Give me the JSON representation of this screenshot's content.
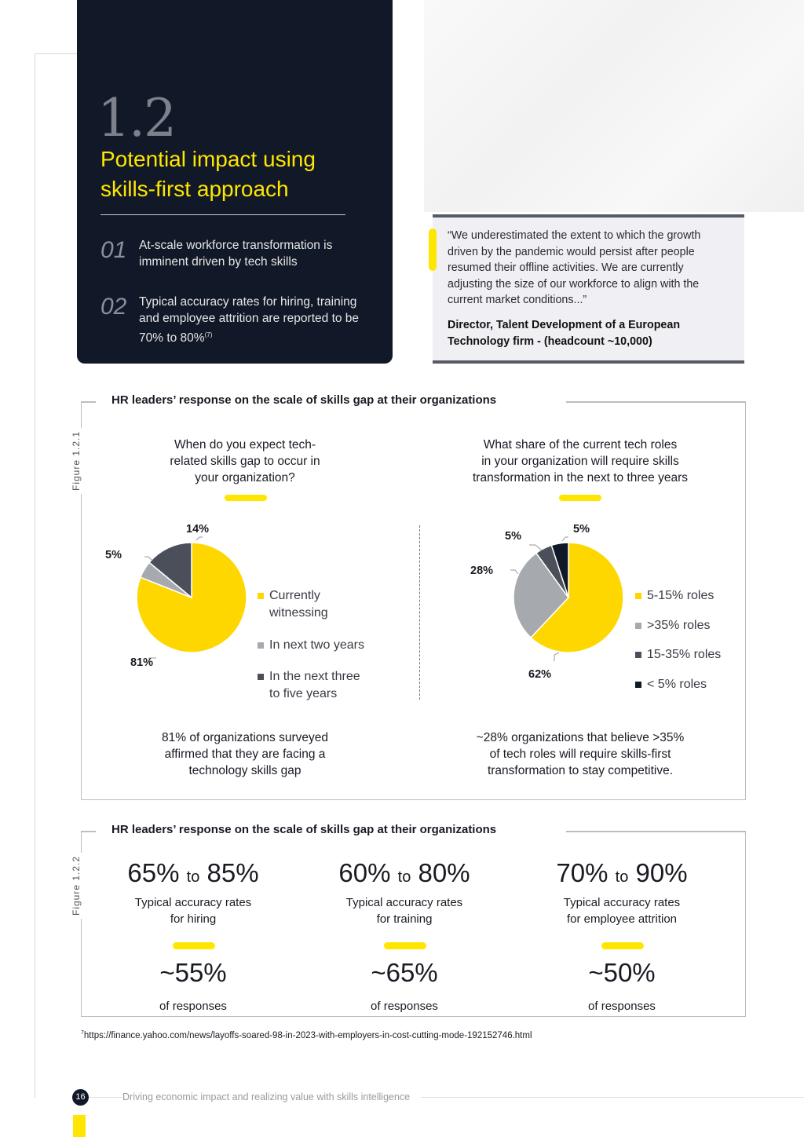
{
  "hero": {
    "section_number": "1.2",
    "title_line1": "Potential impact using",
    "title_line2": "skills-first approach",
    "points": [
      {
        "num": "01",
        "text": "At-scale workforce transformation is imminent driven by tech skills"
      },
      {
        "num": "02",
        "text": "Typical accuracy rates for hiring, training and employee attrition are reported to be 70% to 80%",
        "sup": "(7)"
      }
    ]
  },
  "quote": {
    "text": "“We underestimated the extent to which the growth driven by the pandemic would persist after people resumed their offline activities. We are currently adjusting the size of our workforce to align with the current market conditions...”",
    "attribution": "Director, Talent Development of a European Technology firm - (headcount ~10,000)"
  },
  "figure1": {
    "label": "Figure 1.2.1",
    "title": "HR leaders’ response on the scale of skills gap at their organizations",
    "left": {
      "question": [
        "When do you expect tech-",
        "related skills gap to occur in",
        "your organization?"
      ],
      "caption": [
        "81% of organizations surveyed",
        "affirmed that they are facing a",
        "technology skills gap"
      ],
      "legend": [
        {
          "label1": "Currently",
          "label2": "witnessing",
          "color": "#ffd700"
        },
        {
          "label1": "In next two years",
          "label2": "",
          "color": "#a6a9ad"
        },
        {
          "label1": "In the next three",
          "label2": "to five years",
          "color": "#4a4f59"
        }
      ],
      "labels": [
        "81%",
        "5%",
        "14%"
      ]
    },
    "right": {
      "question": [
        "What share of the current tech roles",
        "in your organization will require skills",
        "transformation in the next to three years"
      ],
      "caption": [
        "~28% organizations that believe >35%",
        "of tech roles will require skills-first",
        "transformation to stay competitive."
      ],
      "legend": [
        {
          "label": "5-15% roles",
          "color": "#ffd700"
        },
        {
          "label": ">35% roles",
          "color": "#a6a9ad"
        },
        {
          "label": "15-35% roles",
          "color": "#4a4f59"
        },
        {
          "label": "< 5% roles",
          "color": "#111827"
        }
      ],
      "labels": [
        "62%",
        "28%",
        "5%",
        "5%"
      ]
    }
  },
  "chart_data": [
    {
      "type": "pie",
      "title": "When do you expect tech-related skills gap to occur in your organization?",
      "categories": [
        "Currently witnessing",
        "In next two years",
        "In the next three to five years"
      ],
      "values": [
        81,
        5,
        14
      ]
    },
    {
      "type": "pie",
      "title": "What share of the current tech roles in your organization will require skills transformation in the next to three years",
      "categories": [
        "5-15% roles",
        ">35% roles",
        "15-35% roles",
        "< 5% roles"
      ],
      "values": [
        62,
        28,
        5,
        5
      ]
    }
  ],
  "figure2": {
    "label": "Figure 1.2.2",
    "title": "HR leaders’ response on the scale of skills gap at their organizations",
    "stats": [
      {
        "low": "65%",
        "to": "to",
        "high": "85%",
        "sub1": "Typical accuracy rates",
        "sub2": "for hiring",
        "resp": "~55%",
        "resp_label": "of responses"
      },
      {
        "low": "60%",
        "to": "to",
        "high": "80%",
        "sub1": "Typical accuracy rates",
        "sub2": "for training",
        "resp": "~65%",
        "resp_label": "of responses"
      },
      {
        "low": "70%",
        "to": "to",
        "high": "90%",
        "sub1": "Typical accuracy rates",
        "sub2": "for employee attrition",
        "resp": "~50%",
        "resp_label": "of responses"
      }
    ]
  },
  "footnote": {
    "sup": "7",
    "text": "https://finance.yahoo.com/news/layoffs-soared-98-in-2023-with-employers-in-cost-cutting-mode-192152746.html"
  },
  "footer": {
    "page": "16",
    "text": "Driving economic impact and realizing value with skills intelligence"
  }
}
